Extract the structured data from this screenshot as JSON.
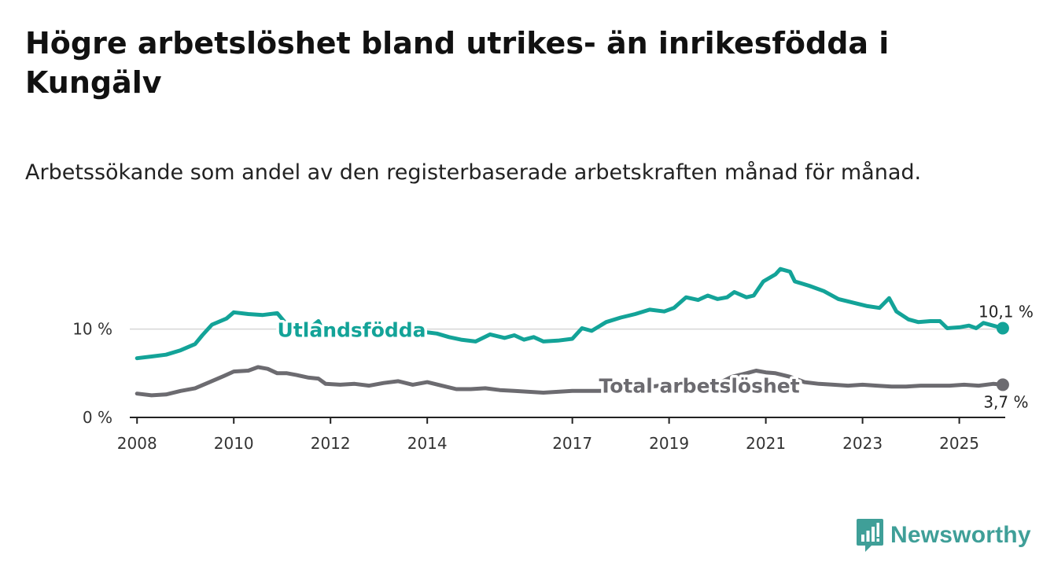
{
  "title": "Högre arbetslöshet bland utrikes- än inrikesfödda i Kungälv",
  "subtitle": "Arbetssökande som andel av den registerbaserade arbetskraften månad för månad.",
  "brand": {
    "name": "Newsworthy",
    "icon": "newsworthy-logo-icon",
    "color": "#3f9f98"
  },
  "chart_data": {
    "type": "line",
    "xlabel": "",
    "ylabel": "",
    "xlim": [
      2007.85,
      2025.95
    ],
    "ylim": [
      0,
      17
    ],
    "x_ticks": [
      2008,
      2010,
      2012,
      2014,
      2017,
      2019,
      2021,
      2023,
      2025
    ],
    "x_tick_labels": [
      "2008",
      "2010",
      "2012",
      "2014",
      "2017",
      "2019",
      "2021",
      "2023",
      "2025"
    ],
    "y_ticks": [
      0,
      10
    ],
    "y_tick_labels": [
      "0 %",
      "10 %"
    ],
    "series": [
      {
        "name": "Utlandsfödda",
        "color": "#13a398",
        "label": "Utlandsfödda",
        "label_at": [
          2010.9,
          10.0
        ],
        "end_label": "10,1 %",
        "points": [
          [
            2008.0,
            6.7
          ],
          [
            2008.3,
            6.9
          ],
          [
            2008.6,
            7.1
          ],
          [
            2008.9,
            7.6
          ],
          [
            2009.2,
            8.3
          ],
          [
            2009.35,
            9.3
          ],
          [
            2009.55,
            10.5
          ],
          [
            2009.85,
            11.2
          ],
          [
            2010.0,
            11.9
          ],
          [
            2010.3,
            11.7
          ],
          [
            2010.6,
            11.6
          ],
          [
            2010.9,
            11.8
          ],
          [
            2011.1,
            10.5
          ],
          [
            2011.3,
            10.7
          ],
          [
            2011.55,
            10.0
          ],
          [
            2011.75,
            10.9
          ],
          [
            2011.9,
            9.2
          ],
          [
            2012.15,
            9.6
          ],
          [
            2012.4,
            9.3
          ],
          [
            2012.7,
            9.6
          ],
          [
            2013.0,
            9.9
          ],
          [
            2013.3,
            9.3
          ],
          [
            2013.6,
            9.5
          ],
          [
            2013.9,
            9.7
          ],
          [
            2014.2,
            9.5
          ],
          [
            2014.45,
            9.1
          ],
          [
            2014.7,
            8.8
          ],
          [
            2015.0,
            8.6
          ],
          [
            2015.3,
            9.4
          ],
          [
            2015.6,
            9.0
          ],
          [
            2015.8,
            9.3
          ],
          [
            2016.0,
            8.8
          ],
          [
            2016.2,
            9.1
          ],
          [
            2016.4,
            8.6
          ],
          [
            2016.7,
            8.7
          ],
          [
            2017.0,
            8.9
          ],
          [
            2017.2,
            10.1
          ],
          [
            2017.4,
            9.8
          ],
          [
            2017.7,
            10.8
          ],
          [
            2018.0,
            11.3
          ],
          [
            2018.3,
            11.7
          ],
          [
            2018.6,
            12.2
          ],
          [
            2018.9,
            12.0
          ],
          [
            2019.1,
            12.4
          ],
          [
            2019.35,
            13.6
          ],
          [
            2019.6,
            13.3
          ],
          [
            2019.8,
            13.8
          ],
          [
            2020.0,
            13.4
          ],
          [
            2020.2,
            13.6
          ],
          [
            2020.35,
            14.2
          ],
          [
            2020.6,
            13.6
          ],
          [
            2020.75,
            13.8
          ],
          [
            2020.95,
            15.4
          ],
          [
            2021.2,
            16.2
          ],
          [
            2021.3,
            16.8
          ],
          [
            2021.5,
            16.5
          ],
          [
            2021.6,
            15.4
          ],
          [
            2021.9,
            14.9
          ],
          [
            2022.2,
            14.3
          ],
          [
            2022.5,
            13.4
          ],
          [
            2022.8,
            13.0
          ],
          [
            2023.1,
            12.6
          ],
          [
            2023.35,
            12.4
          ],
          [
            2023.55,
            13.5
          ],
          [
            2023.7,
            12.0
          ],
          [
            2023.95,
            11.1
          ],
          [
            2024.15,
            10.8
          ],
          [
            2024.4,
            10.9
          ],
          [
            2024.6,
            10.9
          ],
          [
            2024.75,
            10.1
          ],
          [
            2025.0,
            10.2
          ],
          [
            2025.2,
            10.4
          ],
          [
            2025.35,
            10.1
          ],
          [
            2025.5,
            10.7
          ],
          [
            2025.7,
            10.4
          ],
          [
            2025.9,
            10.1
          ]
        ]
      },
      {
        "name": "Total arbetslöshet",
        "color": "#6c6b70",
        "label": "Total arbetslöshet",
        "label_at": [
          2017.55,
          3.7
        ],
        "end_label": "3,7 %",
        "points": [
          [
            2008.0,
            2.7
          ],
          [
            2008.3,
            2.5
          ],
          [
            2008.6,
            2.6
          ],
          [
            2008.9,
            3.0
          ],
          [
            2009.2,
            3.3
          ],
          [
            2009.5,
            4.0
          ],
          [
            2009.8,
            4.7
          ],
          [
            2010.0,
            5.2
          ],
          [
            2010.3,
            5.3
          ],
          [
            2010.5,
            5.7
          ],
          [
            2010.7,
            5.5
          ],
          [
            2010.9,
            5.0
          ],
          [
            2011.1,
            5.0
          ],
          [
            2011.3,
            4.8
          ],
          [
            2011.55,
            4.5
          ],
          [
            2011.75,
            4.4
          ],
          [
            2011.9,
            3.8
          ],
          [
            2012.2,
            3.7
          ],
          [
            2012.5,
            3.8
          ],
          [
            2012.8,
            3.6
          ],
          [
            2013.1,
            3.9
          ],
          [
            2013.4,
            4.1
          ],
          [
            2013.7,
            3.7
          ],
          [
            2014.0,
            4.0
          ],
          [
            2014.3,
            3.6
          ],
          [
            2014.6,
            3.2
          ],
          [
            2014.9,
            3.2
          ],
          [
            2015.2,
            3.3
          ],
          [
            2015.5,
            3.1
          ],
          [
            2015.8,
            3.0
          ],
          [
            2016.1,
            2.9
          ],
          [
            2016.4,
            2.8
          ],
          [
            2016.7,
            2.9
          ],
          [
            2017.0,
            3.0
          ],
          [
            2017.3,
            3.0
          ],
          [
            2017.6,
            3.0
          ],
          [
            2017.9,
            3.1
          ],
          [
            2018.2,
            3.3
          ],
          [
            2018.5,
            3.4
          ],
          [
            2018.8,
            3.6
          ],
          [
            2019.1,
            3.6
          ],
          [
            2019.4,
            3.7
          ],
          [
            2019.7,
            3.6
          ],
          [
            2020.0,
            3.8
          ],
          [
            2020.3,
            4.6
          ],
          [
            2020.6,
            5.0
          ],
          [
            2020.8,
            5.3
          ],
          [
            2021.0,
            5.1
          ],
          [
            2021.2,
            5.0
          ],
          [
            2021.5,
            4.6
          ],
          [
            2021.8,
            4.0
          ],
          [
            2022.1,
            3.8
          ],
          [
            2022.4,
            3.7
          ],
          [
            2022.7,
            3.6
          ],
          [
            2023.0,
            3.7
          ],
          [
            2023.3,
            3.6
          ],
          [
            2023.6,
            3.5
          ],
          [
            2023.9,
            3.5
          ],
          [
            2024.2,
            3.6
          ],
          [
            2024.5,
            3.6
          ],
          [
            2024.8,
            3.6
          ],
          [
            2025.1,
            3.7
          ],
          [
            2025.4,
            3.6
          ],
          [
            2025.7,
            3.8
          ],
          [
            2025.9,
            3.7
          ]
        ]
      }
    ]
  }
}
